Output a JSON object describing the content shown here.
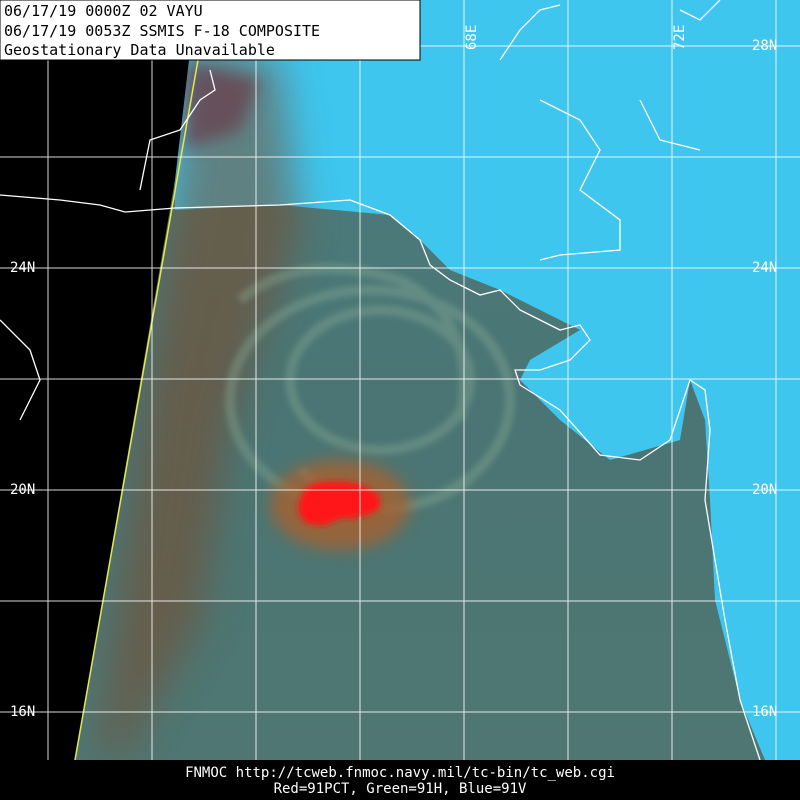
{
  "header": {
    "lines": [
      "06/17/19 0000Z  02 VAYU",
      "06/17/19 0053Z  SSMIS F-18 COMPOSITE",
      "Geostationary Data Unavailable"
    ]
  },
  "grid_labels": {
    "lat_right": [
      "28N",
      "24N",
      "20N",
      "16N"
    ],
    "lat_left": [
      "24N",
      "20N",
      "16N"
    ],
    "lon": [
      "68E",
      "72E"
    ]
  },
  "footer": {
    "lines": [
      "FNMOC  http://tcweb.fnmoc.navy.mil/tc-bin/tc_web.cgi",
      "Red=91PCT, Green=91H, Blue=91V"
    ]
  }
}
